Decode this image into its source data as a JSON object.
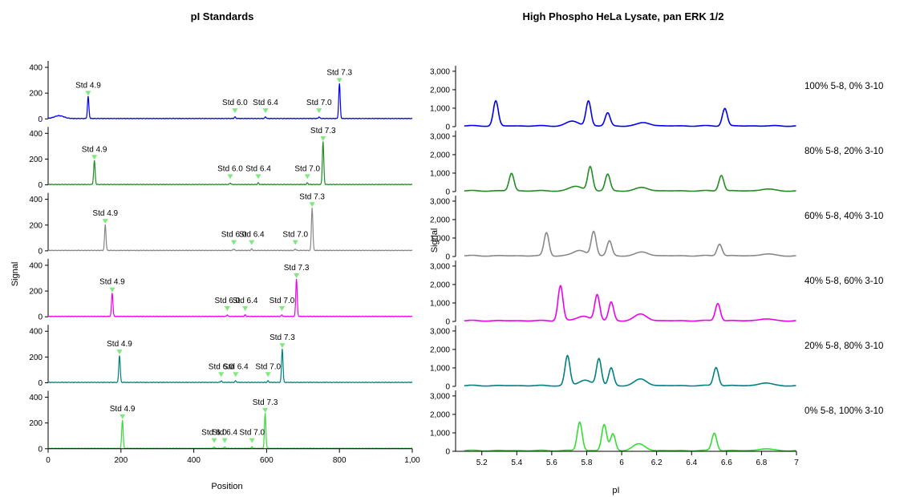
{
  "chart_data": [
    {
      "type": "line",
      "title": "pI Standards",
      "xlabel": "Position",
      "ylabel": "Signal",
      "xlim": [
        0,
        1000
      ],
      "ylim": [
        0,
        450
      ],
      "x_ticks": [
        "0",
        "200",
        "400",
        "600",
        "800",
        "1,00"
      ],
      "y_ticks": [
        "0",
        "200",
        "400"
      ],
      "series": [
        {
          "color": "#0000ee",
          "peaks": [
            {
              "x": 110,
              "y": 160,
              "label": "Std 4.9"
            },
            {
              "x": 800,
              "y": 260,
              "label": "Std 7.3"
            }
          ],
          "markers": [
            {
              "x": 110,
              "label": "Std 4.9"
            },
            {
              "x": 513,
              "label": "Std 6.0"
            },
            {
              "x": 597,
              "label": "Std 6.4"
            },
            {
              "x": 744,
              "label": "Std 7.0"
            },
            {
              "x": 800,
              "label": "Std 7.3"
            }
          ]
        },
        {
          "color": "#228b22",
          "peaks": [
            {
              "x": 127,
              "y": 175,
              "label": "Std 4.9"
            },
            {
              "x": 755,
              "y": 320,
              "label": "Std 7.3"
            }
          ],
          "markers": [
            {
              "x": 127,
              "label": "Std 4.9"
            },
            {
              "x": 500,
              "label": "Std 6.0"
            },
            {
              "x": 577,
              "label": "Std 6.4"
            },
            {
              "x": 712,
              "label": "Std 7.0"
            },
            {
              "x": 755,
              "label": "Std 7.3"
            }
          ]
        },
        {
          "color": "#888888",
          "peaks": [
            {
              "x": 157,
              "y": 190,
              "label": "Std 4.9"
            },
            {
              "x": 725,
              "y": 320,
              "label": "Std 7.3"
            }
          ],
          "markers": [
            {
              "x": 157,
              "label": "Std 4.9"
            },
            {
              "x": 510,
              "label": "Std 6.0"
            },
            {
              "x": 559,
              "label": "Std 6.4"
            },
            {
              "x": 679,
              "label": "Std 7.0"
            },
            {
              "x": 725,
              "label": "Std 7.3"
            }
          ]
        },
        {
          "color": "#ee00ee",
          "peaks": [
            {
              "x": 176,
              "y": 170,
              "label": "Std 4.9"
            },
            {
              "x": 682,
              "y": 280,
              "label": "Std 7.3"
            }
          ],
          "markers": [
            {
              "x": 176,
              "label": "Std 4.9"
            },
            {
              "x": 492,
              "label": "Std 6.0"
            },
            {
              "x": 541,
              "label": "Std 6.4"
            },
            {
              "x": 642,
              "label": "Std 7.0"
            },
            {
              "x": 682,
              "label": "Std 7.3"
            }
          ]
        },
        {
          "color": "#008080",
          "peaks": [
            {
              "x": 196,
              "y": 200,
              "label": "Std 4.9"
            },
            {
              "x": 643,
              "y": 250,
              "label": "Std 7.3"
            }
          ],
          "markers": [
            {
              "x": 196,
              "label": "Std 4.9"
            },
            {
              "x": 475,
              "label": "Std 6.0"
            },
            {
              "x": 515,
              "label": "Std 6.4"
            },
            {
              "x": 604,
              "label": "Std 7.0"
            },
            {
              "x": 643,
              "label": "Std 7.3"
            }
          ]
        },
        {
          "color": "#33dd33",
          "peaks": [
            {
              "x": 204,
              "y": 210,
              "label": "Std 4.9"
            },
            {
              "x": 596,
              "y": 260,
              "label": "Std 7.3"
            }
          ],
          "markers": [
            {
              "x": 204,
              "label": "Std 4.9"
            },
            {
              "x": 456,
              "label": "Std 6.0"
            },
            {
              "x": 485,
              "label": "Std 6.4"
            },
            {
              "x": 560,
              "label": "Std 7.0"
            },
            {
              "x": 596,
              "label": "Std 7.3"
            }
          ]
        }
      ]
    },
    {
      "type": "line",
      "title": "High Phospho HeLa Lysate, pan ERK 1/2",
      "xlabel": "pI",
      "ylabel": "Signal",
      "xlim": [
        5.05,
        7.0
      ],
      "ylim": [
        0,
        3300
      ],
      "x_ticks": [
        "5.2",
        "5.4",
        "5.6",
        "5.8",
        "6",
        "6.2",
        "6.4",
        "6.6",
        "6.8",
        "7"
      ],
      "y_ticks": [
        "0",
        "1,000",
        "2,000",
        "3,000"
      ],
      "series": [
        {
          "name": "100% 5-8, 0% 3-10",
          "color": "#0000ee",
          "peaks": [
            {
              "x": 5.28,
              "y": 1350
            },
            {
              "x": 5.72,
              "y": 250
            },
            {
              "x": 5.81,
              "y": 1350
            },
            {
              "x": 5.92,
              "y": 700
            },
            {
              "x": 6.13,
              "y": 180
            },
            {
              "x": 6.59,
              "y": 950
            }
          ]
        },
        {
          "name": "80% 5-8, 20% 3-10",
          "color": "#228b22",
          "peaks": [
            {
              "x": 5.37,
              "y": 950
            },
            {
              "x": 5.74,
              "y": 250
            },
            {
              "x": 5.82,
              "y": 1300
            },
            {
              "x": 5.92,
              "y": 900
            },
            {
              "x": 6.12,
              "y": 180
            },
            {
              "x": 6.57,
              "y": 850
            },
            {
              "x": 6.83,
              "y": 100
            }
          ]
        },
        {
          "name": "60% 5-8, 40% 3-10",
          "color": "#888888",
          "peaks": [
            {
              "x": 5.57,
              "y": 1250
            },
            {
              "x": 5.76,
              "y": 300
            },
            {
              "x": 5.84,
              "y": 1300
            },
            {
              "x": 5.93,
              "y": 800
            },
            {
              "x": 6.12,
              "y": 200
            },
            {
              "x": 6.56,
              "y": 650
            },
            {
              "x": 6.83,
              "y": 100
            }
          ]
        },
        {
          "name": "40% 5-8, 60% 3-10",
          "color": "#ee00ee",
          "peaks": [
            {
              "x": 5.65,
              "y": 1900
            },
            {
              "x": 5.78,
              "y": 250
            },
            {
              "x": 5.86,
              "y": 1400
            },
            {
              "x": 5.94,
              "y": 1000
            },
            {
              "x": 6.11,
              "y": 350
            },
            {
              "x": 6.55,
              "y": 950
            },
            {
              "x": 6.82,
              "y": 100
            }
          ]
        },
        {
          "name": "20% 5-8, 80% 3-10",
          "color": "#008080",
          "peaks": [
            {
              "x": 5.69,
              "y": 1600
            },
            {
              "x": 5.79,
              "y": 300
            },
            {
              "x": 5.87,
              "y": 1450
            },
            {
              "x": 5.94,
              "y": 950
            },
            {
              "x": 6.11,
              "y": 350
            },
            {
              "x": 6.54,
              "y": 1000
            },
            {
              "x": 6.82,
              "y": 150
            }
          ]
        },
        {
          "name": "0% 5-8, 100% 3-10",
          "color": "#33dd33",
          "peaks": [
            {
              "x": 5.76,
              "y": 1550
            },
            {
              "x": 5.9,
              "y": 1400
            },
            {
              "x": 5.95,
              "y": 900
            },
            {
              "x": 6.1,
              "y": 350
            },
            {
              "x": 6.53,
              "y": 950
            },
            {
              "x": 6.82,
              "y": 100
            }
          ]
        }
      ]
    }
  ]
}
